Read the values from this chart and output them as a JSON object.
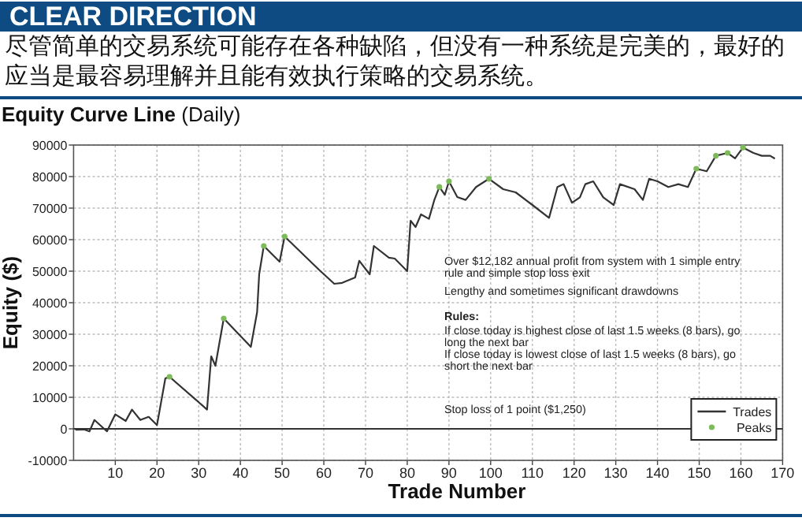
{
  "chart_data": {
    "type": "line",
    "title": "CLEAR DIRECTION",
    "subtitle": "尽管简单的交易系统可能存在各种缺陷，但没有一种系统是完美的，最好的应当是最容易理解并且能有效执行策略的交易系统。",
    "xlabel": "Trade Number",
    "ylabel": "Equity ($)",
    "xlim": [
      0,
      170
    ],
    "xticks": [
      10,
      20,
      30,
      40,
      50,
      60,
      70,
      80,
      90,
      100,
      110,
      120,
      130,
      140,
      150,
      160,
      170
    ],
    "ylim": [
      -10000,
      90000
    ],
    "yticks": [
      -10000,
      0,
      10000,
      20000,
      30000,
      40000,
      50000,
      60000,
      70000,
      80000,
      90000
    ],
    "grid": true,
    "legend": "bottom right",
    "ref_lines": [
      {
        "axis": "y",
        "value": 0,
        "color": "#333333"
      }
    ],
    "annotations": [
      "**Equity Curve Line** (Daily)",
      "Over $12,182 annual profit from system with 1 simple entry rule and simple stop loss exit",
      "Lengthy and sometimes significant drawdowns",
      "**Rules:**",
      "If close today is highest close of last 1.5 weeks (8 bars), go long the next bar",
      "If close today is lowest close of last 1.5 weeks (8 bars), go short the next bar",
      "Stop loss of 1 point ($1,250)"
    ],
    "series": [
      {
        "name": "Trades",
        "type": "line",
        "color": "#333333",
        "x": [
          0.6,
          2.5,
          3.8,
          5,
          8,
          10,
          12.5,
          14,
          16,
          18,
          20,
          22,
          23,
          29,
          32,
          33,
          34,
          36,
          42.5,
          44,
          44.5,
          45.6,
          49.4,
          50.6,
          58.8,
          62.5,
          64.4,
          67.5,
          68.5,
          71,
          72,
          75.6,
          77,
          80,
          80.8,
          82,
          83.3,
          85.2,
          86.5,
          87.7,
          89,
          90,
          92,
          94,
          96.5,
          99.6,
          103,
          106,
          110,
          114,
          116,
          117.5,
          119.5,
          121.4,
          122.7,
          124.6,
          127,
          129.5,
          131,
          134.5,
          136.5,
          138,
          140,
          142.6,
          145,
          147.3,
          149.3,
          151.8,
          154,
          156.8,
          158.6,
          160.5,
          163,
          165,
          167,
          168
        ],
        "values": [
          -300,
          -200,
          -800,
          2800,
          -800,
          4600,
          2500,
          6100,
          2800,
          3800,
          1200,
          16000,
          16500,
          9600,
          6100,
          23000,
          20000,
          35000,
          26000,
          37000,
          49000,
          58000,
          53000,
          61000,
          50500,
          46000,
          46300,
          48000,
          53300,
          49000,
          58000,
          54300,
          54000,
          50000,
          66000,
          64000,
          68000,
          66600,
          72600,
          76700,
          74200,
          78500,
          73500,
          72600,
          76700,
          79300,
          76000,
          75000,
          71000,
          66900,
          76700,
          77600,
          71700,
          73400,
          77600,
          78500,
          73400,
          71000,
          77600,
          76000,
          72600,
          79300,
          78500,
          76700,
          77600,
          76700,
          82500,
          81700,
          86600,
          87500,
          85800,
          89200,
          87500,
          86600,
          86600,
          85800
        ]
      },
      {
        "name": "Peaks",
        "type": "scatter",
        "color": "#7cba5a",
        "x": [
          23,
          36,
          45.6,
          50.6,
          87.7,
          90,
          99.6,
          149.3,
          154,
          156.8,
          160.5
        ],
        "values": [
          16500,
          35000,
          58000,
          61000,
          76700,
          78500,
          79300,
          82500,
          86600,
          87500,
          89200
        ]
      }
    ]
  }
}
